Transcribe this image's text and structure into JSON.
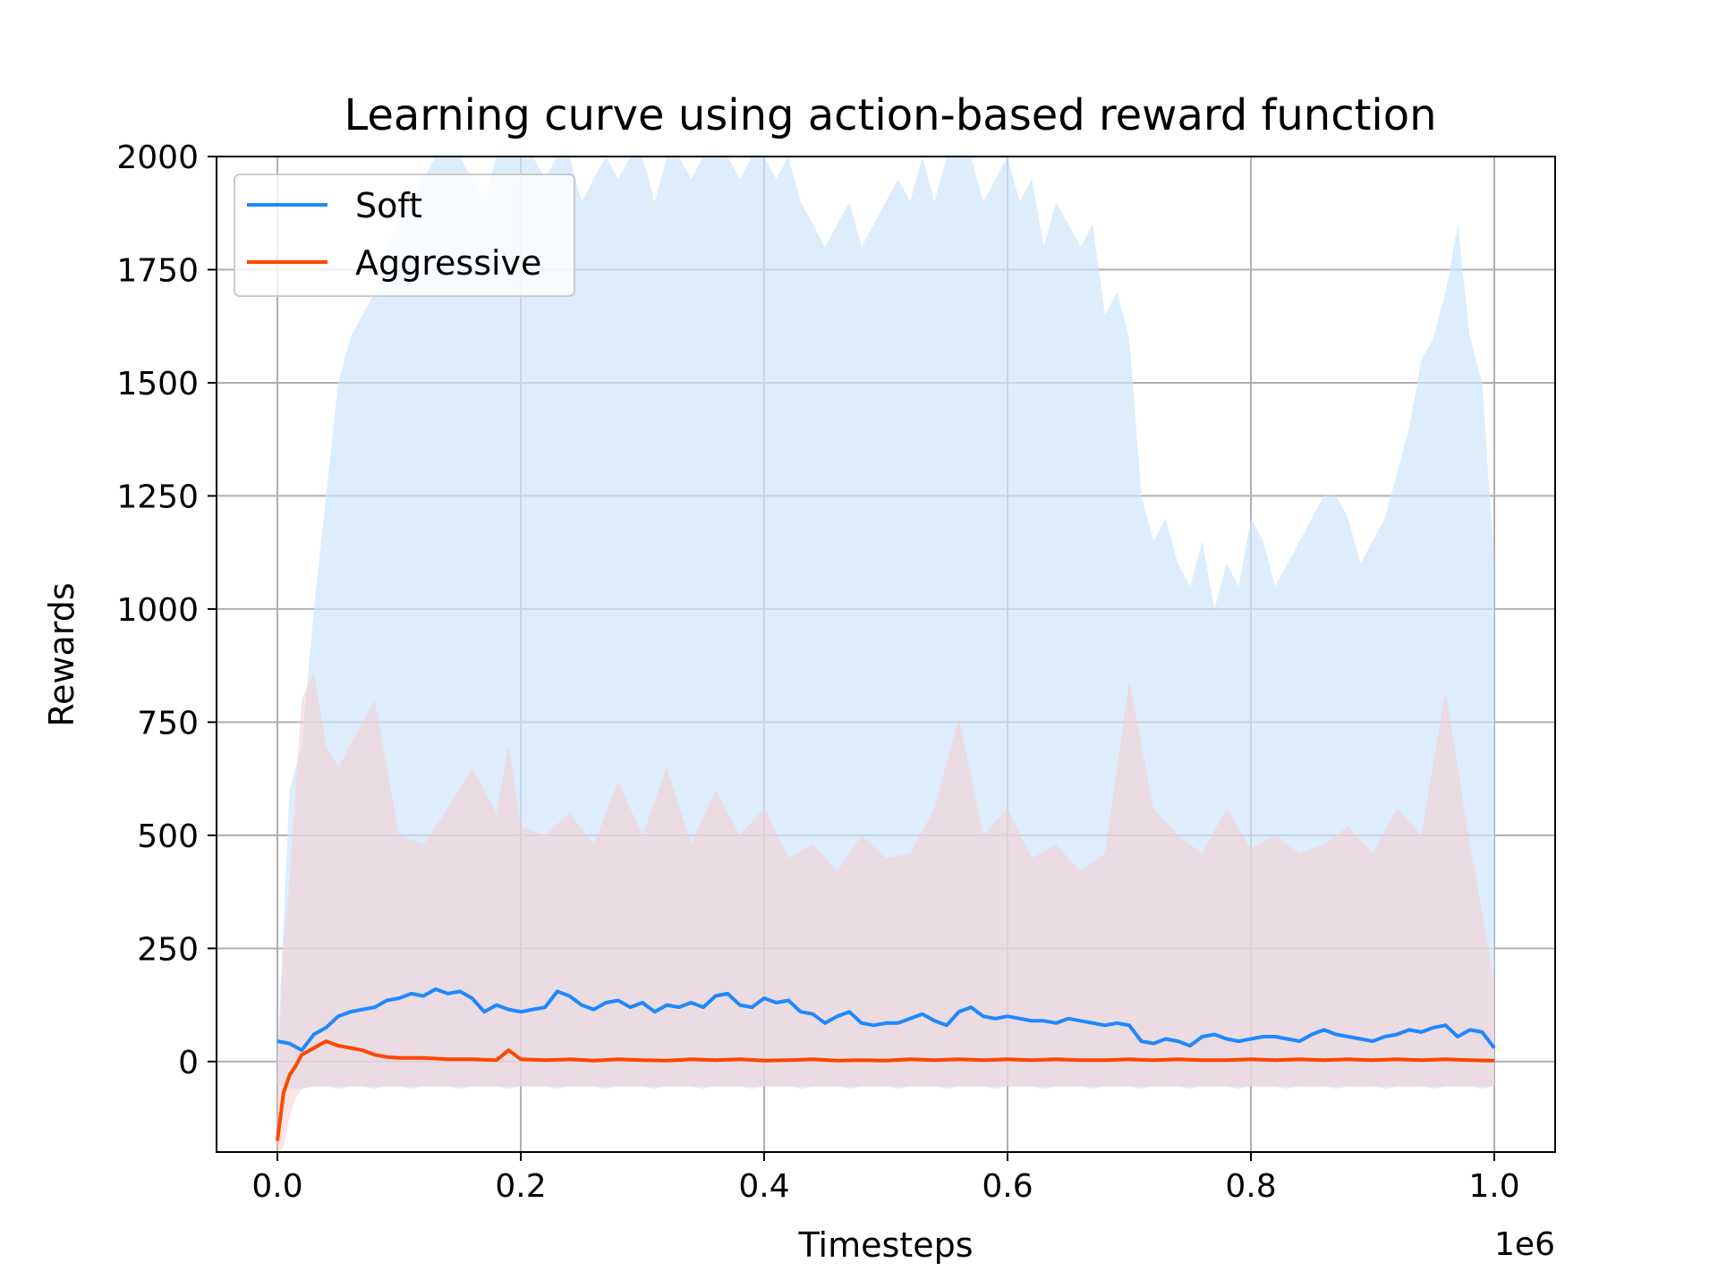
{
  "chart_data": {
    "type": "line",
    "title": "Learning curve using action-based reward function",
    "xlabel": "Timesteps",
    "ylabel": "Rewards",
    "x_offset_label": "1e6",
    "xlim": [
      -0.05,
      1.05
    ],
    "ylim": [
      -200,
      2000
    ],
    "x_ticks": [
      0.0,
      0.2,
      0.4,
      0.6,
      0.8,
      1.0
    ],
    "x_tick_labels": [
      "0.0",
      "0.2",
      "0.4",
      "0.6",
      "0.8",
      "1.0"
    ],
    "y_ticks": [
      0,
      250,
      500,
      750,
      1000,
      1250,
      1500,
      1750,
      2000
    ],
    "y_tick_labels": [
      "0",
      "250",
      "500",
      "750",
      "1000",
      "1250",
      "1500",
      "1750",
      "2000"
    ],
    "grid": true,
    "legend_position": "top-left",
    "series": [
      {
        "name": "Soft",
        "color": "#1e88ff",
        "band_color": "#cfe6fb",
        "x": [
          0.0,
          0.01,
          0.02,
          0.03,
          0.04,
          0.05,
          0.06,
          0.07,
          0.08,
          0.09,
          0.1,
          0.11,
          0.12,
          0.13,
          0.14,
          0.15,
          0.16,
          0.17,
          0.18,
          0.19,
          0.2,
          0.21,
          0.22,
          0.23,
          0.24,
          0.25,
          0.26,
          0.27,
          0.28,
          0.29,
          0.3,
          0.31,
          0.32,
          0.33,
          0.34,
          0.35,
          0.36,
          0.37,
          0.38,
          0.39,
          0.4,
          0.41,
          0.42,
          0.43,
          0.44,
          0.45,
          0.46,
          0.47,
          0.48,
          0.49,
          0.5,
          0.51,
          0.52,
          0.53,
          0.54,
          0.55,
          0.56,
          0.57,
          0.58,
          0.59,
          0.6,
          0.61,
          0.62,
          0.63,
          0.64,
          0.65,
          0.66,
          0.67,
          0.68,
          0.69,
          0.7,
          0.71,
          0.72,
          0.73,
          0.74,
          0.75,
          0.76,
          0.77,
          0.78,
          0.79,
          0.8,
          0.81,
          0.82,
          0.83,
          0.84,
          0.85,
          0.86,
          0.87,
          0.88,
          0.89,
          0.9,
          0.91,
          0.92,
          0.93,
          0.94,
          0.95,
          0.96,
          0.97,
          0.98,
          0.99,
          1.0
        ],
        "values": [
          45,
          40,
          25,
          60,
          75,
          100,
          110,
          115,
          120,
          135,
          140,
          150,
          145,
          160,
          150,
          155,
          140,
          110,
          125,
          115,
          110,
          115,
          120,
          155,
          145,
          125,
          115,
          130,
          135,
          120,
          130,
          110,
          125,
          120,
          130,
          120,
          145,
          150,
          125,
          120,
          140,
          130,
          135,
          110,
          105,
          85,
          100,
          110,
          85,
          80,
          85,
          85,
          95,
          105,
          90,
          80,
          110,
          120,
          100,
          95,
          100,
          95,
          90,
          90,
          85,
          95,
          90,
          85,
          80,
          85,
          80,
          45,
          40,
          50,
          45,
          35,
          55,
          60,
          50,
          45,
          50,
          55,
          55,
          50,
          45,
          60,
          70,
          60,
          55,
          50,
          45,
          55,
          60,
          70,
          65,
          75,
          80,
          55,
          70,
          65,
          30
        ],
        "band_high": [
          10,
          600,
          700,
          1000,
          1250,
          1500,
          1600,
          1650,
          1700,
          1800,
          1850,
          1900,
          1950,
          2000,
          2000,
          2000,
          1950,
          1900,
          2000,
          2000,
          2000,
          2000,
          1950,
          2000,
          2000,
          1900,
          1950,
          2000,
          1950,
          2000,
          2000,
          1900,
          2000,
          2000,
          1950,
          2000,
          2000,
          2000,
          1950,
          2000,
          2000,
          1950,
          2000,
          1900,
          1850,
          1800,
          1850,
          1900,
          1800,
          1850,
          1900,
          1950,
          1900,
          2000,
          1900,
          2000,
          2000,
          2000,
          1900,
          1950,
          2000,
          1900,
          1950,
          1800,
          1900,
          1850,
          1800,
          1850,
          1650,
          1700,
          1600,
          1250,
          1150,
          1200,
          1100,
          1050,
          1150,
          1000,
          1100,
          1050,
          1200,
          1150,
          1050,
          1100,
          1150,
          1200,
          1250,
          1250,
          1200,
          1100,
          1150,
          1200,
          1300,
          1400,
          1550,
          1600,
          1700,
          1850,
          1600,
          1500,
          1100
        ],
        "band_low": [
          -50,
          -60,
          -60,
          -55,
          -55,
          -60,
          -55,
          -55,
          -60,
          -55,
          -55,
          -60,
          -55,
          -55,
          -55,
          -60,
          -55,
          -55,
          -55,
          -60,
          -55,
          -55,
          -55,
          -60,
          -55,
          -55,
          -55,
          -60,
          -55,
          -55,
          -55,
          -60,
          -55,
          -55,
          -55,
          -60,
          -55,
          -55,
          -55,
          -60,
          -55,
          -55,
          -55,
          -60,
          -55,
          -55,
          -55,
          -60,
          -55,
          -55,
          -55,
          -60,
          -55,
          -55,
          -55,
          -60,
          -55,
          -55,
          -55,
          -60,
          -55,
          -55,
          -55,
          -60,
          -55,
          -55,
          -55,
          -60,
          -55,
          -55,
          -55,
          -60,
          -55,
          -55,
          -55,
          -60,
          -55,
          -55,
          -55,
          -60,
          -55,
          -55,
          -55,
          -60,
          -55,
          -55,
          -55,
          -60,
          -55,
          -55,
          -55,
          -60,
          -55,
          -55,
          -55,
          -60,
          -55,
          -55,
          -55,
          -60,
          -55
        ]
      },
      {
        "name": "Aggressive",
        "color": "#ff4500",
        "band_color": "#f5cdcd",
        "x": [
          0.0,
          0.005,
          0.01,
          0.015,
          0.02,
          0.03,
          0.04,
          0.05,
          0.06,
          0.07,
          0.08,
          0.09,
          0.1,
          0.12,
          0.14,
          0.16,
          0.18,
          0.19,
          0.2,
          0.22,
          0.24,
          0.26,
          0.28,
          0.3,
          0.32,
          0.34,
          0.36,
          0.38,
          0.4,
          0.42,
          0.44,
          0.46,
          0.48,
          0.5,
          0.52,
          0.54,
          0.56,
          0.58,
          0.6,
          0.62,
          0.64,
          0.66,
          0.68,
          0.7,
          0.72,
          0.74,
          0.76,
          0.78,
          0.8,
          0.82,
          0.84,
          0.86,
          0.88,
          0.9,
          0.92,
          0.94,
          0.96,
          0.98,
          1.0
        ],
        "values": [
          -175,
          -70,
          -30,
          -10,
          15,
          30,
          45,
          35,
          30,
          25,
          15,
          10,
          8,
          8,
          5,
          5,
          3,
          25,
          5,
          3,
          5,
          2,
          5,
          3,
          2,
          5,
          3,
          5,
          2,
          3,
          5,
          2,
          3,
          2,
          5,
          3,
          5,
          3,
          5,
          3,
          5,
          3,
          3,
          5,
          3,
          5,
          3,
          3,
          5,
          3,
          5,
          3,
          5,
          3,
          5,
          3,
          5,
          3,
          2
        ],
        "band_high": [
          -50,
          250,
          400,
          600,
          800,
          860,
          700,
          650,
          700,
          750,
          800,
          650,
          500,
          480,
          560,
          650,
          550,
          700,
          520,
          500,
          550,
          480,
          620,
          500,
          650,
          480,
          600,
          500,
          560,
          450,
          480,
          420,
          500,
          450,
          460,
          560,
          760,
          500,
          560,
          450,
          480,
          420,
          460,
          840,
          560,
          500,
          460,
          560,
          470,
          500,
          460,
          480,
          520,
          460,
          560,
          500,
          820,
          480,
          180
        ],
        "band_low": [
          -200,
          -190,
          -120,
          -80,
          -60,
          -55,
          -55,
          -55,
          -55,
          -55,
          -55,
          -55,
          -55,
          -55,
          -55,
          -55,
          -55,
          -55,
          -55,
          -55,
          -55,
          -55,
          -55,
          -55,
          -55,
          -55,
          -55,
          -55,
          -55,
          -55,
          -55,
          -55,
          -55,
          -55,
          -55,
          -55,
          -55,
          -55,
          -55,
          -55,
          -55,
          -55,
          -55,
          -55,
          -55,
          -55,
          -55,
          -55,
          -55,
          -55,
          -55,
          -55,
          -55,
          -55,
          -55,
          -55,
          -55,
          -55,
          -55
        ]
      }
    ]
  }
}
